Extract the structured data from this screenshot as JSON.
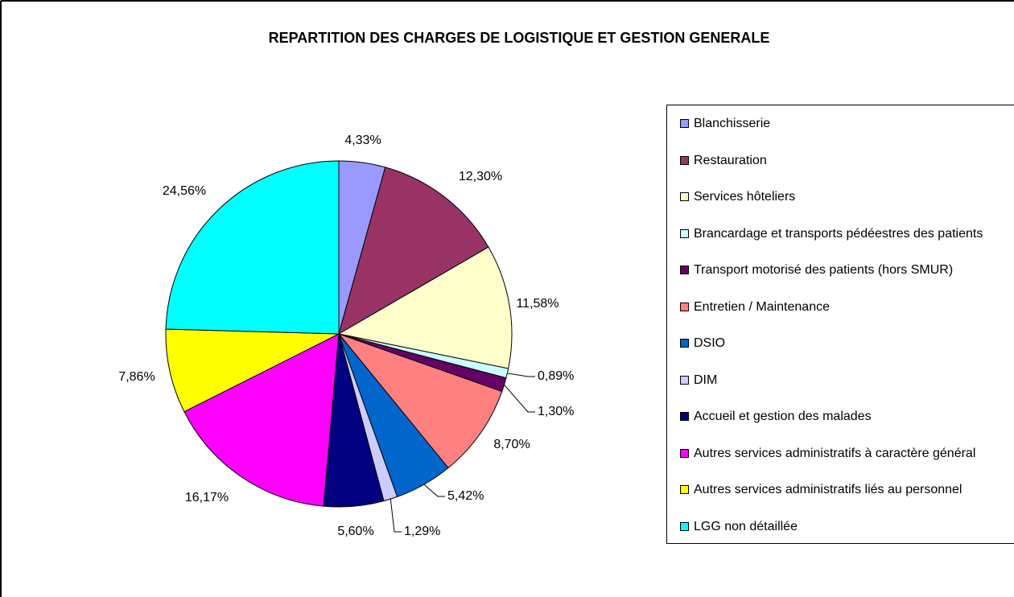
{
  "chart_data": {
    "type": "pie",
    "title": "REPARTITION DES CHARGES DE LOGISTIQUE ET GESTION GENERALE",
    "categories": [
      "Blanchisserie",
      "Restauration",
      "Services hôteliers",
      "Brancardage et transports pédéestres des patients",
      "Transport motorisé des patients (hors SMUR)",
      "Entretien / Maintenance",
      "DSIO",
      "DIM",
      "Accueil et gestion des malades",
      "Autres services administratifs à caractère général",
      "Autres services administratifs liés au personnel",
      "LGG non détaillée"
    ],
    "values": [
      4.33,
      12.3,
      11.58,
      0.89,
      1.3,
      8.7,
      5.42,
      1.29,
      5.6,
      16.17,
      7.86,
      24.56
    ],
    "value_labels": [
      "4,33%",
      "12,30%",
      "11,58%",
      "0,89%",
      "1,30%",
      "8,70%",
      "5,42%",
      "1,29%",
      "5,60%",
      "16,17%",
      "7,86%",
      "24,56%"
    ],
    "colors": [
      "#9999ff",
      "#993366",
      "#ffffcc",
      "#ccffff",
      "#660066",
      "#ff8080",
      "#0066cc",
      "#ccccff",
      "#000080",
      "#ff00ff",
      "#ffff00",
      "#00ffff"
    ],
    "legend": "right"
  }
}
